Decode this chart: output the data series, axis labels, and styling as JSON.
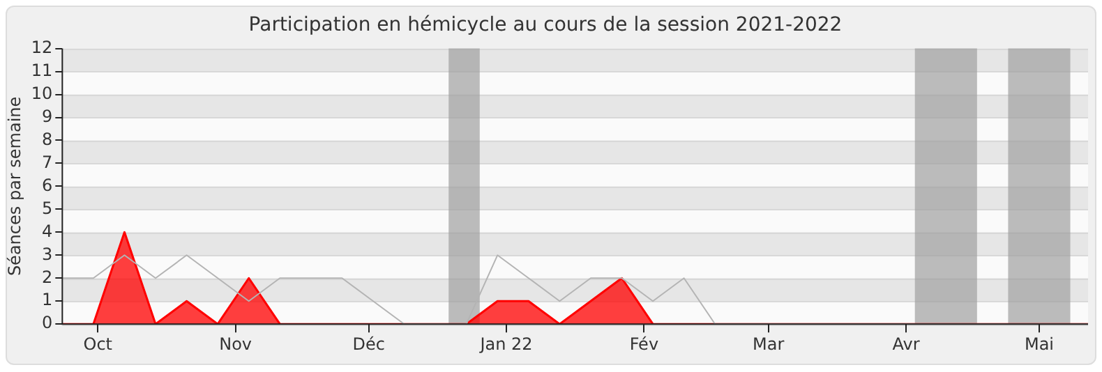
{
  "chart_data": {
    "type": "area",
    "title": "Participation en hémicycle au cours de la session 2021-2022",
    "ylabel": "Séances par semaine",
    "x": [
      "2021-09-23",
      "2021-09-30",
      "2021-10-07",
      "2021-10-14",
      "2021-10-21",
      "2021-10-28",
      "2021-11-04",
      "2021-11-11",
      "2021-11-18",
      "2021-11-25",
      "2021-12-02",
      "2021-12-09",
      "2021-12-16",
      "2021-12-23",
      "2021-12-30",
      "2022-01-06",
      "2022-01-13",
      "2022-01-20",
      "2022-01-27",
      "2022-02-03",
      "2022-02-10",
      "2022-02-17",
      "2022-02-24",
      "2022-03-03",
      "2022-03-10",
      "2022-03-17",
      "2022-03-24",
      "2022-03-31",
      "2022-04-07",
      "2022-04-14",
      "2022-04-21",
      "2022-04-28",
      "2022-05-05",
      "2022-05-12"
    ],
    "series": [
      {
        "type": "line",
        "color": "#b4b4b4",
        "values": [
          2,
          2,
          3,
          2,
          3,
          2,
          1,
          2,
          2,
          2,
          1,
          0,
          0,
          0,
          3,
          2,
          1,
          2,
          2,
          1,
          2,
          0,
          0,
          0,
          0,
          0,
          0,
          0,
          0,
          0,
          0,
          0,
          0,
          0
        ]
      },
      {
        "color": "#ff0000",
        "values": [
          0,
          0,
          4,
          0,
          1,
          0,
          2,
          0,
          0,
          0,
          0,
          0,
          0,
          0,
          1,
          1,
          0,
          1,
          2,
          0,
          0,
          0,
          0,
          0,
          0,
          0,
          0,
          0,
          0,
          0,
          0,
          0,
          0,
          0
        ]
      }
    ],
    "xlim": [
      "2021-09-23",
      "2022-05-12"
    ],
    "xticks": [
      {
        "value": "2021-10-01",
        "label": "Oct"
      },
      {
        "value": "2021-11-01",
        "label": "Nov"
      },
      {
        "value": "2021-12-01",
        "label": "Déc"
      },
      {
        "value": "2022-01-01",
        "label": "Jan 22"
      },
      {
        "value": "2022-02-01",
        "label": "Fév"
      },
      {
        "value": "2022-03-01",
        "label": "Mar"
      },
      {
        "value": "2022-04-01",
        "label": "Avr"
      },
      {
        "value": "2022-05-01",
        "label": "Mai"
      }
    ],
    "ylim": [
      0,
      12
    ],
    "yticks": [
      0,
      1,
      2,
      3,
      4,
      5,
      6,
      7,
      8,
      9,
      10,
      11,
      12
    ],
    "bands": [
      {
        "axis": "x",
        "from": "2021-12-19",
        "to": "2021-12-26",
        "color": "#a0a0a0"
      },
      {
        "axis": "x",
        "from": "2022-04-03",
        "to": "2022-04-17",
        "color": "#a0a0a0"
      },
      {
        "axis": "x",
        "from": "2022-04-24",
        "to": "2022-05-08",
        "color": "#a0a0a0"
      }
    ],
    "grid": "y",
    "legend": false,
    "marker": "none"
  }
}
